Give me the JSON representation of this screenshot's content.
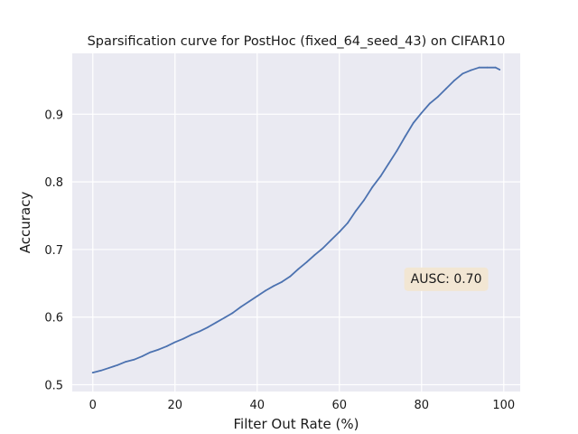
{
  "chart_data": {
    "type": "line",
    "title": "Sparsification curve for PostHoc (fixed_64_seed_43) on CIFAR10",
    "xlabel": "Filter Out Rate (%)",
    "ylabel": "Accuracy",
    "xlim": [
      -5,
      104
    ],
    "ylim": [
      0.49,
      0.99
    ],
    "xticks": [
      0,
      20,
      40,
      60,
      80,
      100
    ],
    "yticks": [
      0.5,
      0.6,
      0.7,
      0.8,
      0.9
    ],
    "xtick_labels": [
      "0",
      "20",
      "40",
      "60",
      "80",
      "100"
    ],
    "ytick_labels": [
      "0.5",
      "0.6",
      "0.7",
      "0.8",
      "0.9"
    ],
    "grid": true,
    "background_color": "#EAEAF2",
    "line_color": "#4C72B0",
    "series": [
      {
        "x": [
          0,
          2,
          4,
          6,
          8,
          10,
          12,
          14,
          16,
          18,
          20,
          22,
          24,
          26,
          28,
          30,
          32,
          34,
          36,
          38,
          40,
          42,
          44,
          46,
          48,
          50,
          52,
          54,
          56,
          58,
          60,
          62,
          64,
          66,
          68,
          70,
          72,
          74,
          76,
          78,
          80,
          82,
          84,
          86,
          88,
          90,
          92,
          94,
          96,
          98,
          99
        ],
        "values": [
          0.518,
          0.521,
          0.525,
          0.529,
          0.534,
          0.537,
          0.542,
          0.548,
          0.552,
          0.557,
          0.563,
          0.568,
          0.574,
          0.579,
          0.585,
          0.592,
          0.599,
          0.606,
          0.615,
          0.623,
          0.631,
          0.639,
          0.646,
          0.652,
          0.66,
          0.671,
          0.681,
          0.692,
          0.702,
          0.714,
          0.726,
          0.739,
          0.757,
          0.773,
          0.792,
          0.808,
          0.827,
          0.846,
          0.867,
          0.887,
          0.902,
          0.916,
          0.926,
          0.938,
          0.95,
          0.96,
          0.965,
          0.969,
          0.969,
          0.969,
          0.966
        ]
      }
    ],
    "annotation": {
      "text": "AUSC: 0.70",
      "x": 86,
      "y": 0.656,
      "box_color": "#F2E6D3"
    }
  }
}
